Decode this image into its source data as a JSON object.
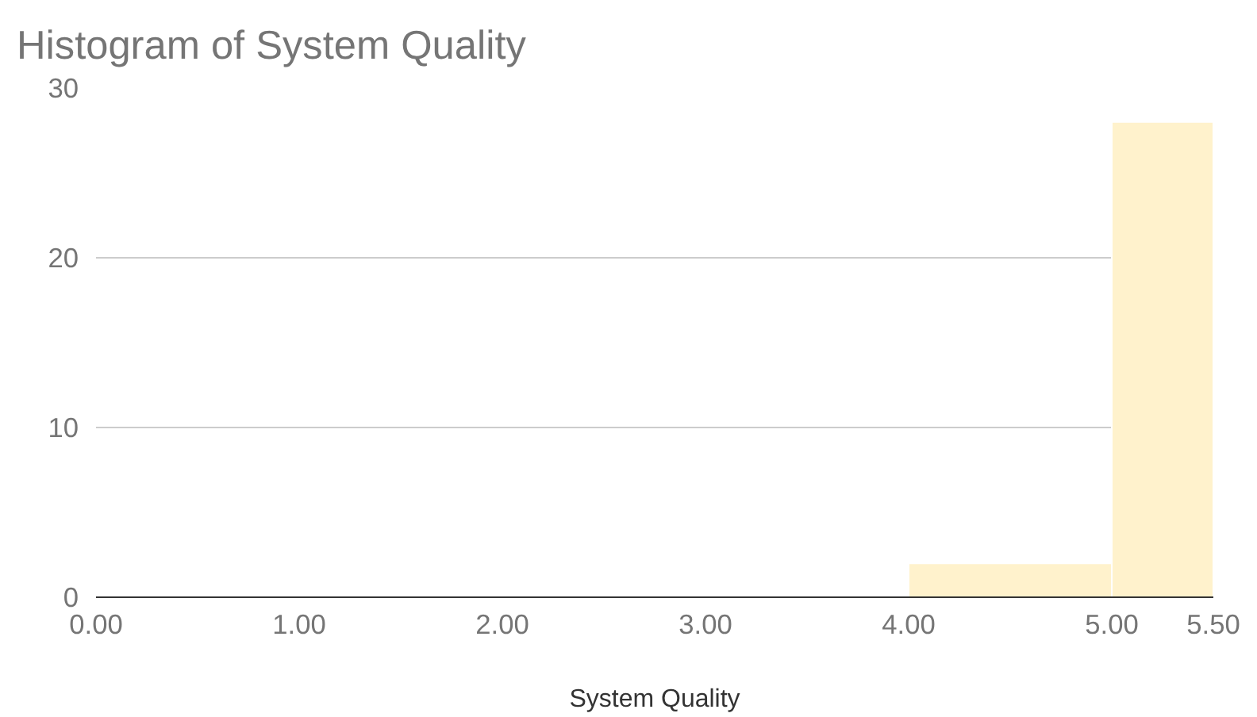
{
  "chart_data": {
    "type": "histogram",
    "title": "Histogram of System Quality",
    "xlabel": "System Quality",
    "bins": [
      4,
      5,
      5.5
    ],
    "values": [
      2,
      28
    ],
    "color": "#fff2cc",
    "xlim": [
      0,
      5.5
    ],
    "xticks": [
      {
        "value": 0,
        "label": "0.00"
      },
      {
        "value": 1,
        "label": "1.00"
      },
      {
        "value": 2,
        "label": "2.00"
      },
      {
        "value": 3,
        "label": "3.00"
      },
      {
        "value": 4,
        "label": "4.00"
      },
      {
        "value": 5,
        "label": "5.00"
      },
      {
        "value": 5.5,
        "label": "5.50"
      }
    ],
    "ylim": [
      0,
      30
    ],
    "yticks": [
      0,
      10,
      20,
      30
    ],
    "grid": "y"
  }
}
